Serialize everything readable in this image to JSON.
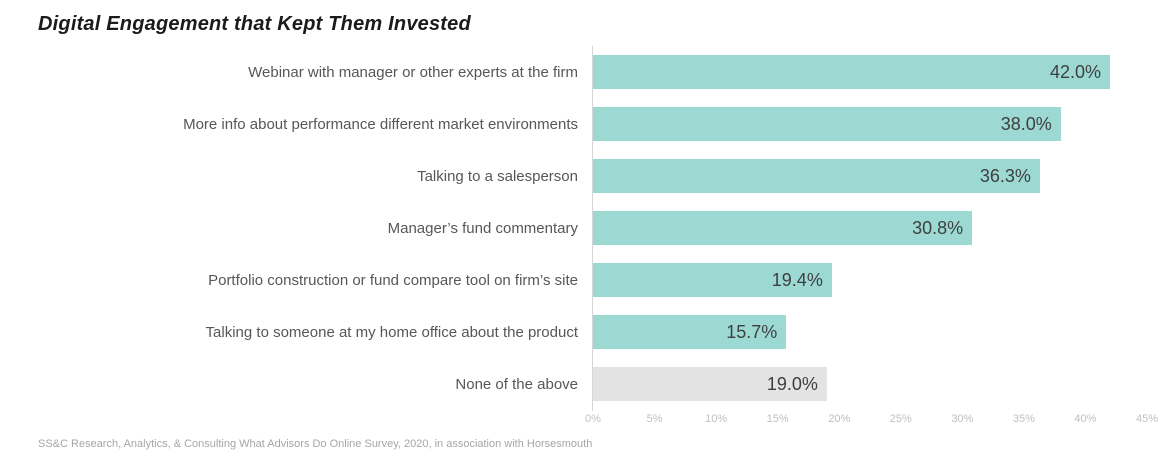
{
  "title": "Digital Engagement that Kept Them Invested",
  "footer": "SS&C Research, Analytics, & Consulting What Advisors Do Online Survey, 2020, in association with Horsesmouth",
  "chart_data": {
    "type": "bar",
    "orientation": "horizontal",
    "title": "Digital Engagement that Kept Them Invested",
    "categories": [
      "Webinar with manager or other experts at the firm",
      "More info about  performance different market environments",
      "Talking to a salesperson",
      "Manager’s fund commentary",
      "Portfolio construction or fund compare tool on firm’s site",
      "Talking to someone at my home office about the product",
      "None of the above"
    ],
    "values": [
      42.0,
      38.0,
      36.3,
      30.8,
      19.4,
      15.7,
      19.0
    ],
    "value_labels": [
      "42.0%",
      "38.0%",
      "36.3%",
      "30.8%",
      "19.4%",
      "15.7%",
      "19.0%"
    ],
    "bar_colors": [
      "#9cd9d3",
      "#9cd9d3",
      "#9cd9d3",
      "#9cd9d3",
      "#9cd9d3",
      "#9cd9d3",
      "#e3e3e3"
    ],
    "xlim": [
      0,
      45
    ],
    "x_ticks": [
      "0%",
      "5%",
      "10%",
      "15%",
      "20%",
      "25%",
      "30%",
      "35%",
      "40%",
      "45%"
    ],
    "grid": false,
    "legend": false,
    "colors": {
      "bar_accent": "#9cd9d3",
      "bar_muted": "#e3e3e3",
      "axis_line": "#d6d6d6",
      "tick_label": "#bfbfbf",
      "value_label": "#3f3f3f",
      "category_label": "#575757",
      "title": "#1b1b1b",
      "source": "#a6a6a6"
    }
  }
}
